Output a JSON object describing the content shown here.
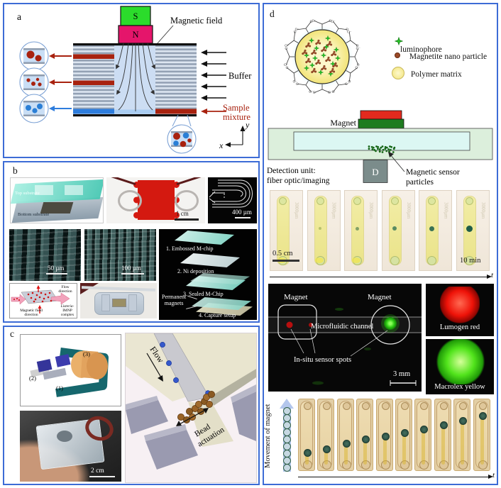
{
  "figure": {
    "border_color": "#3d6cd6",
    "panel_a": {
      "label": "a",
      "magnet_s": "S",
      "magnet_n": "N",
      "magnetic_field": "Magnetic field",
      "buffer": "Buffer",
      "sample_line1": "Sample",
      "sample_line2": "mixture",
      "axis_x": "x",
      "axis_y": "y",
      "colors": {
        "s_pole": "#2bdc2b",
        "n_pole": "#e5156b",
        "outlet_red": "#a8220f",
        "outlet_blue": "#2e7ddd",
        "channel_fill": "#ccddf3"
      }
    },
    "panel_b": {
      "label": "b",
      "top_substrate": "Top substrate",
      "bottom_substrate": "Bottom substrate",
      "scale_1cm": "1 cm",
      "scale_400um": "400 µm",
      "scale_50um": "50 µm",
      "scale_100um": "100 µm",
      "steps": [
        "1. Embossed M-chip",
        "2. Ni deposition",
        "3. Sealed M-Chip",
        "4. Capture setup"
      ],
      "permanent_magnets_line1": "Permanent",
      "permanent_magnets_line2": "magnets",
      "flow_line1": "Flow",
      "flow_line2": "direction",
      "field_line1": "Magnetic field",
      "field_line2": "direction",
      "complex_line1": "Listeria-",
      "complex_line2": "IMNP",
      "complex_line3": "complex"
    },
    "panel_c": {
      "label": "c",
      "part1": "(1)",
      "part2": "(2)",
      "part3": "(3)",
      "scale_2cm": "2 cm",
      "flow": "Flow",
      "bead_line1": "Bead",
      "bead_line2": "actuation"
    },
    "panel_d": {
      "label": "d",
      "legend": [
        {
          "icon": "star-icon",
          "label": "luminophore"
        },
        {
          "icon": "dot-icon",
          "label": "Magnetite nano particle"
        },
        {
          "icon": "circle-icon",
          "label": "Polymer matrix"
        }
      ],
      "magnet": "Magnet",
      "sensor_line1": "Magnetic sensor",
      "sensor_line2": "particles",
      "detection_line1": "Detection unit:",
      "detection_line2": "fiber optic/imaging",
      "detector": "D",
      "scale_05cm": "0.5 cm",
      "time_10min": "10 min",
      "t_axis": "t",
      "watermark": "3000µm",
      "middle_series": {
        "count": 6,
        "dot_sizes": [
          0,
          4,
          5,
          6,
          7,
          9
        ],
        "dot_opacity": [
          0,
          0.55,
          0.75,
          0.85,
          0.95,
          1
        ],
        "dot_colors": [
          "#8aa04a",
          "#8aa04a",
          "#5d8a56",
          "#3d7a58",
          "#2e6b52",
          "#1f5c49"
        ]
      },
      "dark_image": {
        "magnet_left": "Magnet",
        "magnet_right": "Magnet",
        "channel": "Microfluidic channel",
        "spots": "In-situ sensor spots",
        "scale_3mm": "3 mm"
      },
      "lumogen": "Lumogen red",
      "macrolex": "Macrolex yellow",
      "movement": "Movement of magnet",
      "bottom_series": {
        "count": 10,
        "dot_positions": [
          0.76,
          0.7,
          0.61,
          0.54,
          0.49,
          0.43,
          0.37,
          0.3,
          0.23,
          0.14
        ]
      },
      "colors": {
        "magnet_red": "#e32a1e",
        "magnet_green": "#1e7c1f",
        "lumogen_red": "#e01010",
        "macrolex_green": "#3ad413",
        "strip_tan": "#e3cfa5",
        "arrow_blue": "#b3c6ec"
      }
    }
  }
}
